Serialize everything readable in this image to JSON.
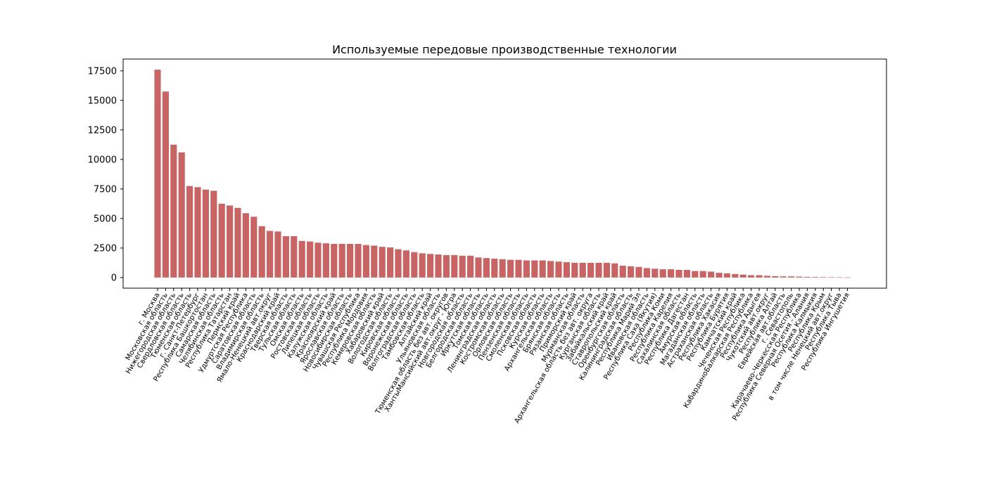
{
  "chart_data": {
    "type": "bar",
    "title": "Используемые передовые производственные технологии",
    "xlabel": "",
    "ylabel": "",
    "ylim": [
      -900,
      18500
    ],
    "yticks": [
      0,
      2500,
      5000,
      7500,
      10000,
      12500,
      15000,
      17500
    ],
    "ytick_labels": [
      "0",
      "2500",
      "5000",
      "7500",
      "10000",
      "12500",
      "15000",
      "17500"
    ],
    "bar_color": "#c86464",
    "grid": false,
    "categories": [
      "г. Москва",
      "Московская область",
      "Нижегородская область",
      "Свердловская область",
      "Тюменская область",
      "г. Санкт-Петербург",
      "Республика Башкортостан",
      "Самарская область",
      "Челябинская область",
      "Республика Татарстан",
      "Пермский край",
      "Удмуртская Республика",
      "Саратовская область",
      "Владимирская область",
      "Ямало-Ненецкий авт.округ",
      "Краснодарский край",
      "Тверская область",
      "Тульская область",
      "Омская область",
      "Ростовская область",
      "Липецкая область",
      "Калужская область",
      "Красноярский край",
      "Ярославская область",
      "Новосибирская область",
      "Чувашская Республика",
      "Республика Мордовия",
      "Кемеровская область",
      "Хабаровский край",
      "Вологодская область",
      "Кировская область",
      "Воронежская область",
      "Волгоградская область",
      "Тамбовская область",
      "Алтайский край",
      "Ульяновская область",
      "Тюменская область без авт. округов",
      "ХантыМансийский авт.округ - Югра",
      "Новгородская область",
      "Белгородская область",
      "Иркутская область",
      "Томская область",
      "Ленинградская область",
      "Костромская область",
      "Орловская область",
      "Пензенская область",
      "Смоленская область",
      "Псковская область",
      "Курская область",
      "Архангельская область",
      "Брянская область",
      "Рязанская область",
      "Приморский край",
      "Мурманская область",
      "Архангельская область без авт. округа",
      "Курганская область",
      "Забайкальский край",
      "Ставропольский край",
      "Оренбургская область",
      "Калининградская область",
      "Республика Марий Эл",
      "Ивановская область",
      "Республика Саха (Якутия)",
      "Республика Коми",
      "Республика Карелия",
      "Сахалинская область",
      "Республика Дагестан",
      "Амурская область",
      "Магаданская область",
      "Астраханская область",
      "Республика Хакасия",
      "Республика Бурятия",
      "Камчатский край",
      "Чеченская Республика",
      "КабардиноБалкарская Республика",
      "Республика Адыгея",
      "Чукотский авт.округ",
      "Республика Алтай",
      "Еврейская авт.область",
      "г. Севастополь",
      "Карачаево-Черкесская Республика",
      "Республика Северная Осетия - Алания",
      "Республика Калмыкия",
      "Республика Крым",
      "в том числе Ненецкий авт.округ",
      "Республика Тыва",
      "Республика Ингушетия"
    ],
    "values": [
      17600,
      15750,
      11250,
      10600,
      7750,
      7650,
      7450,
      7350,
      6250,
      6100,
      5900,
      5450,
      5150,
      4350,
      3950,
      3900,
      3500,
      3500,
      3100,
      3050,
      2950,
      2900,
      2850,
      2850,
      2850,
      2850,
      2750,
      2700,
      2600,
      2550,
      2400,
      2300,
      2150,
      2050,
      2000,
      1950,
      1900,
      1900,
      1850,
      1850,
      1700,
      1650,
      1600,
      1550,
      1500,
      1500,
      1450,
      1450,
      1450,
      1400,
      1350,
      1300,
      1250,
      1250,
      1250,
      1250,
      1250,
      1200,
      1000,
      950,
      900,
      800,
      750,
      700,
      700,
      650,
      650,
      550,
      550,
      500,
      400,
      350,
      300,
      250,
      200,
      200,
      150,
      120,
      100,
      100,
      80,
      60,
      50,
      40,
      30,
      20,
      10
    ]
  }
}
